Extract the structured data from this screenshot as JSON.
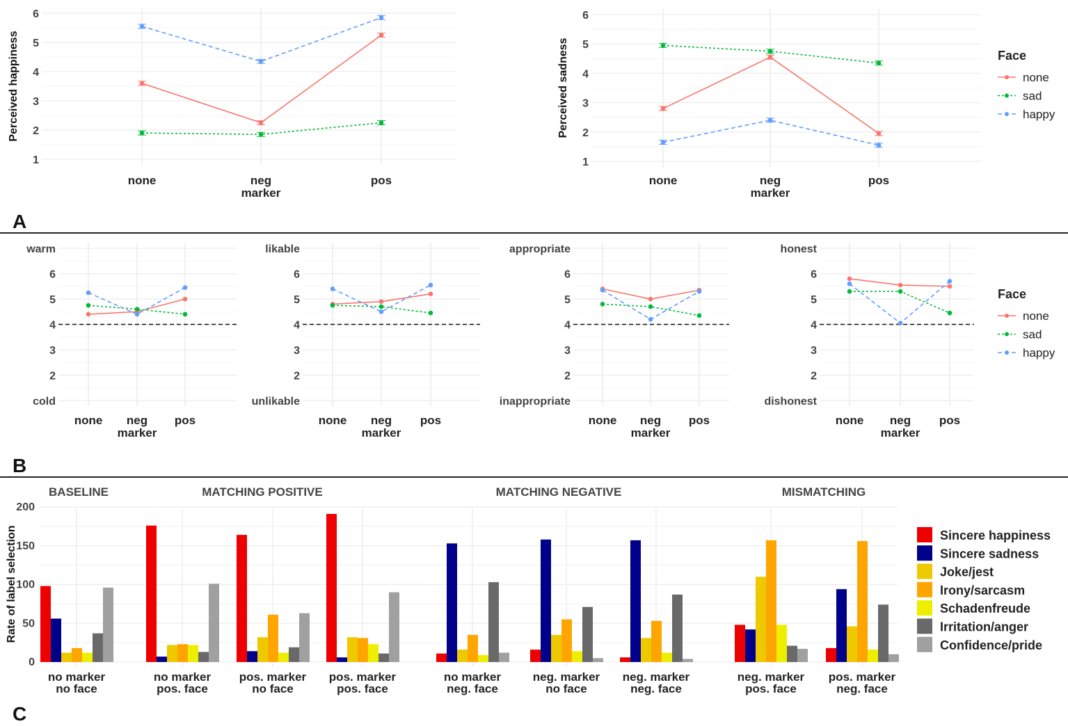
{
  "chart_data": [
    {
      "type": "line",
      "panel": "A",
      "ylabel": "Perceived happiness",
      "ylim": [
        1,
        6
      ],
      "yticks": [
        1,
        2,
        3,
        4,
        5,
        6
      ],
      "categories": [
        "none",
        "neg",
        "pos"
      ],
      "xlabel": "marker",
      "series": [
        {
          "name": "none",
          "values": [
            3.6,
            2.25,
            5.25
          ]
        },
        {
          "name": "sad",
          "values": [
            1.9,
            1.85,
            2.25
          ]
        },
        {
          "name": "happy",
          "values": [
            5.55,
            4.35,
            5.85
          ]
        }
      ]
    },
    {
      "type": "line",
      "panel": "A",
      "ylabel": "Perceived sadness",
      "ylim": [
        1,
        6
      ],
      "yticks": [
        1,
        2,
        3,
        4,
        5,
        6
      ],
      "categories": [
        "none",
        "neg",
        "pos"
      ],
      "xlabel": "marker",
      "series": [
        {
          "name": "none",
          "values": [
            2.8,
            4.55,
            1.95
          ]
        },
        {
          "name": "sad",
          "values": [
            4.95,
            4.75,
            4.35
          ]
        },
        {
          "name": "happy",
          "values": [
            1.65,
            2.4,
            1.55
          ]
        }
      ]
    },
    {
      "type": "line",
      "panel": "B",
      "ylim": [
        1,
        7
      ],
      "yticklabels": [
        "cold",
        "2",
        "3",
        "4",
        "5",
        "6",
        "warm"
      ],
      "categories": [
        "none",
        "neg",
        "pos"
      ],
      "xlabel": "marker",
      "reference_line": 4,
      "series": [
        {
          "name": "none",
          "values": [
            4.4,
            4.5,
            5.0
          ]
        },
        {
          "name": "sad",
          "values": [
            4.75,
            4.6,
            4.4
          ]
        },
        {
          "name": "happy",
          "values": [
            5.25,
            4.4,
            5.45
          ]
        }
      ]
    },
    {
      "type": "line",
      "panel": "B",
      "ylim": [
        1,
        7
      ],
      "yticklabels": [
        "unlikable",
        "2",
        "3",
        "4",
        "5",
        "6",
        "likable"
      ],
      "categories": [
        "none",
        "neg",
        "pos"
      ],
      "xlabel": "marker",
      "reference_line": 4,
      "series": [
        {
          "name": "none",
          "values": [
            4.8,
            4.9,
            5.2
          ]
        },
        {
          "name": "sad",
          "values": [
            4.75,
            4.7,
            4.45
          ]
        },
        {
          "name": "happy",
          "values": [
            5.4,
            4.5,
            5.55
          ]
        }
      ]
    },
    {
      "type": "line",
      "panel": "B",
      "ylim": [
        1,
        7
      ],
      "yticklabels": [
        "inappropriate",
        "2",
        "3",
        "4",
        "5",
        "6",
        "appropriate"
      ],
      "categories": [
        "none",
        "neg",
        "pos"
      ],
      "xlabel": "marker",
      "reference_line": 4,
      "series": [
        {
          "name": "none",
          "values": [
            5.4,
            5.0,
            5.35
          ]
        },
        {
          "name": "sad",
          "values": [
            4.8,
            4.7,
            4.35
          ]
        },
        {
          "name": "happy",
          "values": [
            5.35,
            4.2,
            5.3
          ]
        }
      ]
    },
    {
      "type": "line",
      "panel": "B",
      "ylim": [
        1,
        7
      ],
      "yticklabels": [
        "dishonest",
        "2",
        "3",
        "4",
        "5",
        "6",
        "honest"
      ],
      "categories": [
        "none",
        "neg",
        "pos"
      ],
      "xlabel": "marker",
      "reference_line": 4,
      "series": [
        {
          "name": "none",
          "values": [
            5.8,
            5.55,
            5.5
          ]
        },
        {
          "name": "sad",
          "values": [
            5.3,
            5.3,
            4.45
          ]
        },
        {
          "name": "happy",
          "values": [
            5.6,
            4.05,
            5.7
          ]
        }
      ]
    },
    {
      "type": "bar",
      "panel": "C",
      "ylabel": "Rate of label selection",
      "ylim": [
        0,
        200
      ],
      "yticks": [
        0,
        50,
        100,
        150,
        200
      ],
      "sections": [
        "BASELINE",
        "MATCHING POSITIVE",
        "MATCHING NEGATIVE",
        "MISMATCHING"
      ],
      "categories": [
        [
          "no marker",
          "no face"
        ],
        [
          "no marker",
          "pos. face"
        ],
        [
          "pos. marker",
          "no  face"
        ],
        [
          "pos. marker",
          "pos. face"
        ],
        [
          "no marker",
          "neg. face"
        ],
        [
          "neg. marker",
          "no face"
        ],
        [
          "neg. marker",
          "neg. face"
        ],
        [
          "neg. marker",
          "pos. face"
        ],
        [
          "pos. marker",
          "neg. face"
        ]
      ],
      "series": [
        {
          "name": "Sincere happiness",
          "color": "#ee0000",
          "values": [
            98,
            176,
            164,
            191,
            11,
            16,
            6,
            48,
            18
          ]
        },
        {
          "name": "Sincere sadness",
          "color": "#00008b",
          "values": [
            56,
            7,
            14,
            6,
            153,
            158,
            157,
            42,
            94
          ]
        },
        {
          "name": "Joke/jest",
          "color": "#eec900",
          "values": [
            12,
            22,
            32,
            32,
            16,
            35,
            31,
            110,
            46
          ]
        },
        {
          "name": "Irony/sarcasm",
          "color": "#ffa500",
          "values": [
            18,
            23,
            61,
            31,
            35,
            55,
            53,
            157,
            156
          ]
        },
        {
          "name": "Schadenfreude",
          "color": "#eeee00",
          "values": [
            12,
            22,
            12,
            23,
            9,
            14,
            12,
            48,
            16
          ]
        },
        {
          "name": "Irritation/anger",
          "color": "#696969",
          "values": [
            37,
            13,
            19,
            11,
            103,
            71,
            87,
            21,
            74
          ]
        },
        {
          "name": "Confidence/pride",
          "color": "#a0a0a0",
          "values": [
            96,
            101,
            63,
            90,
            12,
            5,
            4,
            17,
            10
          ]
        }
      ]
    }
  ],
  "legend": {
    "title": "Face",
    "items": [
      {
        "name": "none",
        "color": "#f8766d"
      },
      {
        "name": "sad",
        "color": "#00ba38"
      },
      {
        "name": "happy",
        "color": "#619cff"
      }
    ]
  },
  "panel_labels": [
    "A",
    "B",
    "C"
  ]
}
